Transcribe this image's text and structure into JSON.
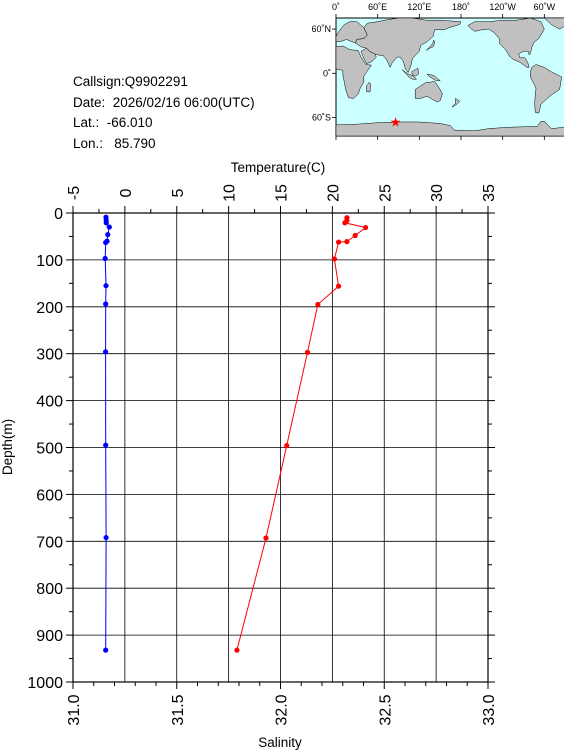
{
  "info": {
    "callsign": "Callsign:Q9902291",
    "date": "Date:  2026/02/16 06:00(UTC)",
    "lat": "Lat.:  -66.010",
    "lon": "Lon.:   85.790"
  },
  "map": {
    "lon_labels": [
      "0˚",
      "60˚E",
      "120˚E",
      "180˚",
      "120˚W",
      "60˚W",
      "0˚"
    ],
    "lat_labels": [
      "60˚N",
      "0˚",
      "60˚S"
    ],
    "station_lon": 85.79,
    "station_lat": -66.01,
    "ocean_color": "#ccffff",
    "land_color": "#c0c0c0",
    "marker_color": "#ff0000"
  },
  "chart_data": {
    "type": "line",
    "ylabel": "Depth(m)",
    "top_xlabel": "Temperature(C)",
    "bottom_xlabel": "Salinity",
    "y_reversed": true,
    "ylim": [
      0,
      1000
    ],
    "y_ticks": [
      "0",
      "100",
      "200",
      "300",
      "400",
      "500",
      "600",
      "700",
      "800",
      "900",
      "1000"
    ],
    "temperature_xlim": [
      -5,
      35
    ],
    "temperature_ticks": [
      "-5",
      "0",
      "5",
      "10",
      "15",
      "20",
      "25",
      "30",
      "35"
    ],
    "salinity_xlim": [
      31.0,
      33.0
    ],
    "salinity_ticks": [
      "31.0",
      "31.5",
      "32.0",
      "32.5",
      "33.0"
    ],
    "grid": true,
    "series": [
      {
        "axis": "salinity",
        "color": "#ff0000",
        "points": [
          [
            32.32,
            10
          ],
          [
            32.32,
            16
          ],
          [
            32.31,
            21
          ],
          [
            32.41,
            31
          ],
          [
            32.36,
            48
          ],
          [
            32.32,
            61
          ],
          [
            32.28,
            62
          ],
          [
            32.26,
            98
          ],
          [
            32.28,
            156
          ],
          [
            32.18,
            195
          ],
          [
            32.13,
            297
          ],
          [
            32.03,
            496
          ],
          [
            31.93,
            693
          ],
          [
            31.79,
            932
          ]
        ]
      },
      {
        "axis": "temperature",
        "color": "#0000ff",
        "points": [
          [
            -1.82,
            9
          ],
          [
            -1.8,
            15
          ],
          [
            -1.79,
            21
          ],
          [
            -1.5,
            30
          ],
          [
            -1.65,
            46
          ],
          [
            -1.72,
            60
          ],
          [
            -1.85,
            63
          ],
          [
            -1.9,
            97
          ],
          [
            -1.82,
            155
          ],
          [
            -1.85,
            194
          ],
          [
            -1.86,
            296
          ],
          [
            -1.85,
            495
          ],
          [
            -1.81,
            692
          ],
          [
            -1.85,
            932
          ]
        ]
      }
    ]
  }
}
